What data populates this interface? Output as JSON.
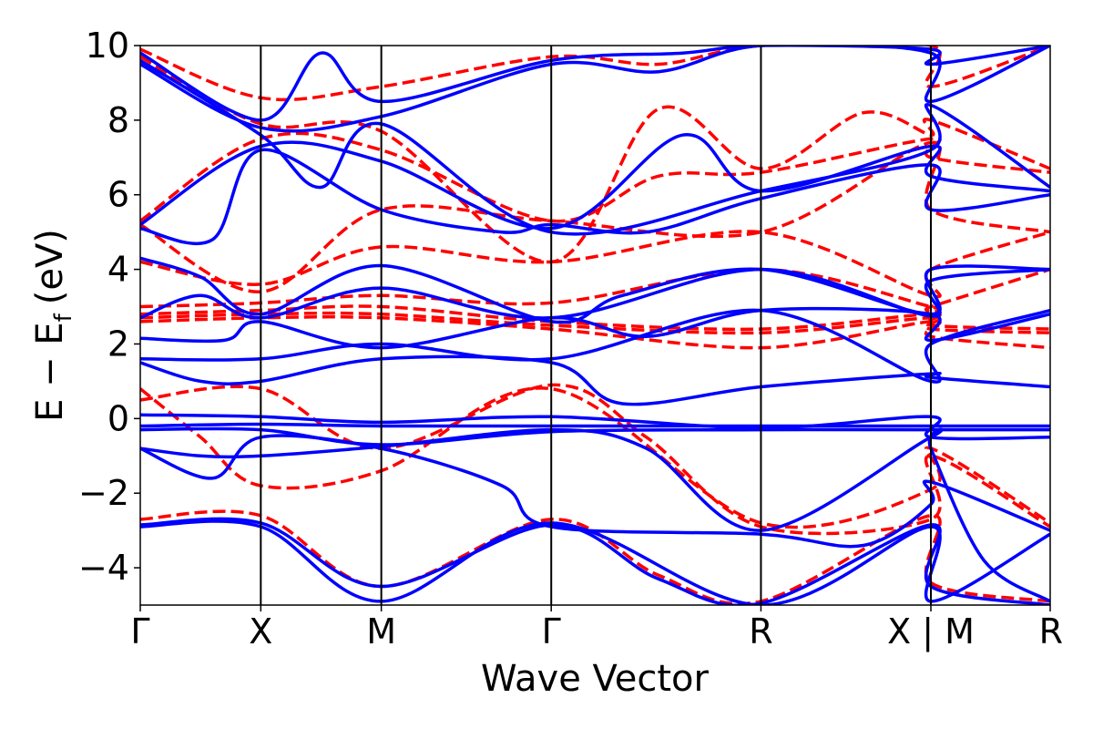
{
  "chart_data": {
    "type": "line",
    "xlabel": "Wave Vector",
    "ylabel_main": "E − E",
    "ylabel_sub": "f",
    "ylabel_unit": "(eV)",
    "ylim": [
      -5,
      10
    ],
    "xlim": [
      0,
      7.55
    ],
    "grid": false,
    "yticks": [
      -4,
      -2,
      0,
      2,
      4,
      6,
      8,
      10
    ],
    "high_symmetry_points": [
      {
        "label": "Γ",
        "x": 0
      },
      {
        "label": "X",
        "x": 1.0
      },
      {
        "label": "M",
        "x": 2.0
      },
      {
        "label": "Γ",
        "x": 3.41
      },
      {
        "label": "R",
        "x": 5.15
      },
      {
        "label": "X | M",
        "x": 6.56
      },
      {
        "label": "R",
        "x": 7.55
      }
    ],
    "series": [
      {
        "style": "solid",
        "color": "#0000ff",
        "bands": [
          {
            "x": [
              0,
              1,
              2,
              3.41,
              5.15,
              6.56,
              6.56,
              7.55
            ],
            "y": [
              -2.9,
              -2.9,
              -4.9,
              -2.8,
              -5.0,
              -2.9,
              -4.9,
              -3.1
            ]
          },
          {
            "x": [
              0,
              1,
              2,
              3.41,
              4.3,
              5.15,
              6.56,
              6.56,
              7.55
            ],
            "y": [
              -2.85,
              -2.8,
              -4.5,
              -2.85,
              -4.3,
              -4.95,
              -2.85,
              -4.5,
              -5.0
            ]
          },
          {
            "x": [
              0,
              0.6,
              1,
              2,
              3.0,
              3.41,
              5.15,
              6.0,
              6.56,
              6.56,
              7.55
            ],
            "y": [
              -0.8,
              -1.6,
              -0.5,
              -0.8,
              -1.8,
              -2.9,
              -3.1,
              -3.4,
              -2.3,
              -1.7,
              -3.0
            ]
          },
          {
            "x": [
              0,
              0.5,
              1,
              2,
              3.41,
              4.2,
              5.15,
              6.56,
              6.56,
              7.0,
              7.55
            ],
            "y": [
              -0.8,
              -1.0,
              -1.0,
              -0.75,
              -0.3,
              -0.8,
              -3.0,
              -0.5,
              -0.8,
              -3.8,
              -4.9
            ]
          },
          {
            "x": [
              0,
              1,
              2,
              3.41,
              5.15,
              6.56,
              6.56,
              7.55
            ],
            "y": [
              -0.3,
              -0.3,
              -0.7,
              -0.35,
              -0.3,
              -0.3,
              -0.3,
              -0.3
            ]
          },
          {
            "x": [
              0,
              1,
              2,
              3.41,
              5.15,
              6.56,
              6.56,
              7.55
            ],
            "y": [
              -0.2,
              -0.15,
              -0.2,
              -0.2,
              -0.2,
              -0.2,
              -0.2,
              -0.2
            ]
          },
          {
            "x": [
              0,
              1,
              2,
              3.41,
              5.15,
              6.56,
              6.56,
              7.55
            ],
            "y": [
              0.1,
              0.05,
              -0.1,
              0.05,
              -0.25,
              0.05,
              -0.5,
              -0.5
            ]
          },
          {
            "x": [
              0,
              0.5,
              1,
              2,
              3.41,
              4.0,
              5.15,
              6.56,
              6.56,
              7.55
            ],
            "y": [
              1.5,
              1.0,
              1.0,
              1.6,
              1.5,
              0.4,
              0.85,
              1.2,
              1.1,
              0.85
            ]
          },
          {
            "x": [
              0,
              1,
              2,
              3.41,
              5.15,
              6.56,
              6.56,
              7.55
            ],
            "y": [
              1.6,
              1.6,
              2.0,
              1.6,
              2.9,
              1.0,
              2.0,
              2.9
            ]
          },
          {
            "x": [
              0,
              0.7,
              1,
              2,
              3.41,
              4.2,
              5.15,
              6.56,
              6.56,
              7.55
            ],
            "y": [
              2.15,
              2.1,
              2.6,
              1.9,
              2.7,
              2.2,
              2.9,
              2.8,
              2.1,
              2.8
            ]
          },
          {
            "x": [
              0,
              0.5,
              1,
              2,
              3.41,
              5.15,
              6.56,
              6.56,
              7.55
            ],
            "y": [
              2.7,
              3.3,
              2.7,
              3.5,
              2.7,
              4.0,
              2.75,
              3.7,
              4.0
            ]
          },
          {
            "x": [
              0,
              0.5,
              1,
              2,
              3.41,
              4.0,
              5.15,
              6.56,
              6.56,
              7.55
            ],
            "y": [
              4.3,
              3.8,
              2.8,
              4.1,
              2.6,
              3.3,
              4.0,
              2.8,
              4.0,
              4.0
            ]
          },
          {
            "x": [
              0,
              0.6,
              1,
              2,
              3.0,
              3.41,
              4.2,
              5.15,
              6.56,
              6.56,
              7.55
            ],
            "y": [
              5.1,
              4.8,
              7.2,
              5.6,
              5.0,
              5.2,
              5.0,
              5.9,
              6.8,
              5.6,
              6.0
            ]
          },
          {
            "x": [
              0,
              1,
              2,
              3.41,
              4.5,
              5.15,
              6.56,
              6.56,
              7.55
            ],
            "y": [
              5.2,
              7.3,
              6.9,
              5.1,
              7.6,
              6.1,
              7.3,
              6.5,
              6.1
            ]
          },
          {
            "x": [
              0,
              1,
              1.5,
              2,
              3.41,
              5.15,
              6.56,
              6.56,
              7.55
            ],
            "y": [
              9.6,
              7.6,
              6.2,
              7.9,
              5.0,
              6.1,
              7.2,
              8.4,
              6.2
            ]
          },
          {
            "x": [
              0,
              1,
              2,
              3.41,
              4.3,
              5.15,
              6.56,
              6.56,
              7.55
            ],
            "y": [
              9.5,
              7.8,
              8.1,
              9.5,
              9.3,
              10.0,
              9.8,
              8.5,
              10.0
            ]
          },
          {
            "x": [
              0,
              1,
              1.5,
              2,
              3.41,
              4.5,
              5.15,
              6.56,
              6.56,
              7.55
            ],
            "y": [
              9.8,
              8.0,
              9.8,
              8.5,
              9.6,
              9.8,
              10.0,
              9.9,
              9.5,
              10.0
            ]
          }
        ]
      },
      {
        "style": "dashed",
        "color": "#ff0000",
        "bands": [
          {
            "x": [
              0,
              1,
              2,
              3.41,
              4.3,
              5.15,
              6.56,
              6.56,
              7.55
            ],
            "y": [
              -2.7,
              -2.6,
              -4.5,
              -2.7,
              -4.2,
              -4.9,
              -2.6,
              -4.4,
              -4.9
            ]
          },
          {
            "x": [
              0,
              0.5,
              1,
              2,
              3.41,
              5.15,
              6.56,
              6.56,
              7.55
            ],
            "y": [
              0.8,
              -0.5,
              -1.8,
              -1.4,
              0.8,
              -2.8,
              -1.9,
              -0.8,
              -2.8
            ]
          },
          {
            "x": [
              0,
              1,
              2,
              3.41,
              4.2,
              5.15,
              6.56,
              6.56,
              7.55
            ],
            "y": [
              0.5,
              0.8,
              -0.8,
              0.9,
              -0.5,
              -2.9,
              -2.7,
              -1.0,
              -2.9
            ]
          },
          {
            "x": [
              0,
              1,
              2,
              3.41,
              5.15,
              6.56,
              6.56,
              7.55
            ],
            "y": [
              2.6,
              2.7,
              2.7,
              2.4,
              1.9,
              2.6,
              2.2,
              1.9
            ]
          },
          {
            "x": [
              0,
              1,
              2,
              3.41,
              5.15,
              6.56,
              6.56,
              7.55
            ],
            "y": [
              2.7,
              2.8,
              2.8,
              2.5,
              2.3,
              2.7,
              2.4,
              2.3
            ]
          },
          {
            "x": [
              0,
              1,
              2,
              3.41,
              5.15,
              6.56,
              6.56,
              7.55
            ],
            "y": [
              2.8,
              2.9,
              3.0,
              2.6,
              2.4,
              2.8,
              2.5,
              2.4
            ]
          },
          {
            "x": [
              0,
              1,
              2,
              3.41,
              5.15,
              6.56,
              6.56,
              7.55
            ],
            "y": [
              3.0,
              3.1,
              3.3,
              3.1,
              4.0,
              3.0,
              3.0,
              4.0
            ]
          },
          {
            "x": [
              0,
              1,
              2,
              3.41,
              5.15,
              6.56,
              6.56,
              7.55
            ],
            "y": [
              4.2,
              3.6,
              4.6,
              4.2,
              5.0,
              3.3,
              4.0,
              5.0
            ]
          },
          {
            "x": [
              0,
              1,
              2,
              3.41,
              5.15,
              6.56,
              6.56,
              7.55
            ],
            "y": [
              5.2,
              3.4,
              5.6,
              5.3,
              5.0,
              7.4,
              5.6,
              5.0
            ]
          },
          {
            "x": [
              0,
              1,
              2,
              3.41,
              4.3,
              5.15,
              6.56,
              6.56,
              7.55
            ],
            "y": [
              5.3,
              7.5,
              7.2,
              5.3,
              6.5,
              6.6,
              7.5,
              7.0,
              6.6
            ]
          },
          {
            "x": [
              0,
              1,
              2,
              3.41,
              4.3,
              5.15,
              6.0,
              6.56,
              6.56,
              7.55
            ],
            "y": [
              9.7,
              7.9,
              7.7,
              4.2,
              8.3,
              6.7,
              8.2,
              7.6,
              8.0,
              6.7
            ]
          },
          {
            "x": [
              0,
              1,
              2,
              3.41,
              4.3,
              5.15,
              6.56,
              6.56,
              7.55
            ],
            "y": [
              9.9,
              8.6,
              8.9,
              9.7,
              9.5,
              10.0,
              10.0,
              8.9,
              10.0
            ]
          }
        ]
      }
    ]
  }
}
